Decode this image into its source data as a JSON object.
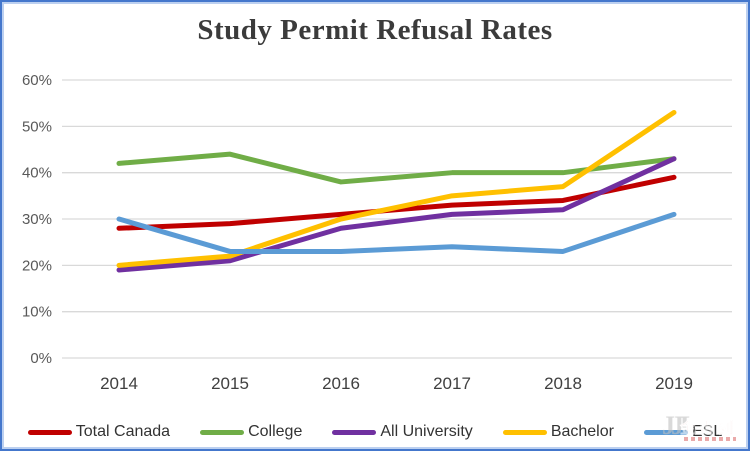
{
  "title": "Study Permit Refusal Rates",
  "chart_data": {
    "type": "line",
    "title": "Study Permit Refusal Rates",
    "categories": [
      "2014",
      "2015",
      "2016",
      "2017",
      "2018",
      "2019"
    ],
    "series": [
      {
        "name": "Total Canada",
        "color": "#C00000",
        "values": [
          28,
          29,
          31,
          33,
          34,
          39
        ]
      },
      {
        "name": "College",
        "color": "#70AD47",
        "values": [
          42,
          44,
          38,
          40,
          40,
          43
        ]
      },
      {
        "name": "All University",
        "color": "#7030A0",
        "values": [
          19,
          21,
          28,
          31,
          32,
          43
        ]
      },
      {
        "name": "Bachelor",
        "color": "#FFC000",
        "values": [
          20,
          22,
          30,
          35,
          37,
          53
        ]
      },
      {
        "name": "ESL",
        "color": "#5B9BD5",
        "values": [
          30,
          23,
          23,
          24,
          23,
          31
        ]
      }
    ],
    "xlabel": "",
    "ylabel": "",
    "ylim": [
      0,
      60
    ],
    "ytick_step": 10,
    "ytick_labels": [
      "0%",
      "10%",
      "20%",
      "30%",
      "40%",
      "50%",
      "60%"
    ],
    "grid": "horizontal",
    "legend_position": "bottom"
  },
  "watermark": {
    "logo": "JJL",
    "brand": "金吉列"
  },
  "colors": {
    "frame_border": "#4477cc",
    "gridline": "#d9d9d9",
    "ytick_text": "#595959",
    "xtick_text": "#404040",
    "title_text": "#3b3b3b"
  }
}
